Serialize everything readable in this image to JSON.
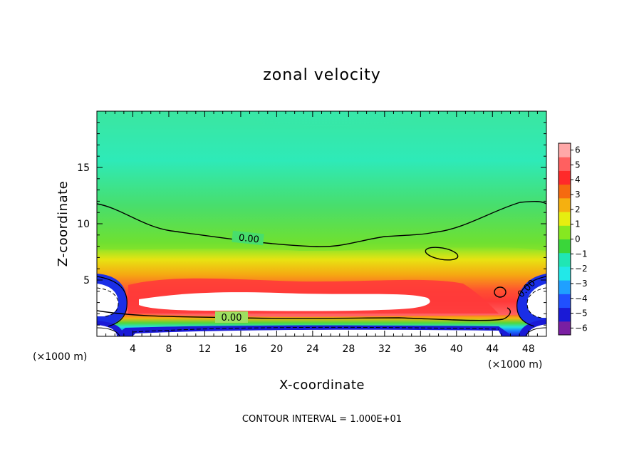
{
  "chart_data": {
    "type": "heatmap",
    "title": "zonal velocity",
    "xlabel": "X-coordinate",
    "ylabel": "Z-coordinate",
    "x_unit_left": "(×1000 m)",
    "x_unit_right": "(×1000 m)",
    "xlim": [
      0,
      50
    ],
    "ylim": [
      0,
      20
    ],
    "x_ticks": [
      4,
      8,
      12,
      16,
      20,
      24,
      28,
      32,
      36,
      40,
      44,
      48
    ],
    "y_ticks": [
      5,
      10,
      15
    ],
    "colorbar": {
      "ticks": [
        6,
        5,
        4,
        3,
        2,
        1,
        0,
        -1,
        -2,
        -3,
        -4,
        -5,
        -6
      ],
      "colors": [
        "#7a1fa2",
        "#1a1ad6",
        "#2050ff",
        "#1fa0ff",
        "#22e8e8",
        "#20e6b4",
        "#3ad63a",
        "#86e820",
        "#e6ee10",
        "#f5b010",
        "#f56a10",
        "#ff2a2a",
        "#ff6060",
        "#ffa8a8"
      ]
    },
    "contour_labels": [
      "0.00",
      "0.00",
      "0.00"
    ],
    "contour_interval_text": "CONTOUR INTERVAL = 1.000E+01"
  }
}
